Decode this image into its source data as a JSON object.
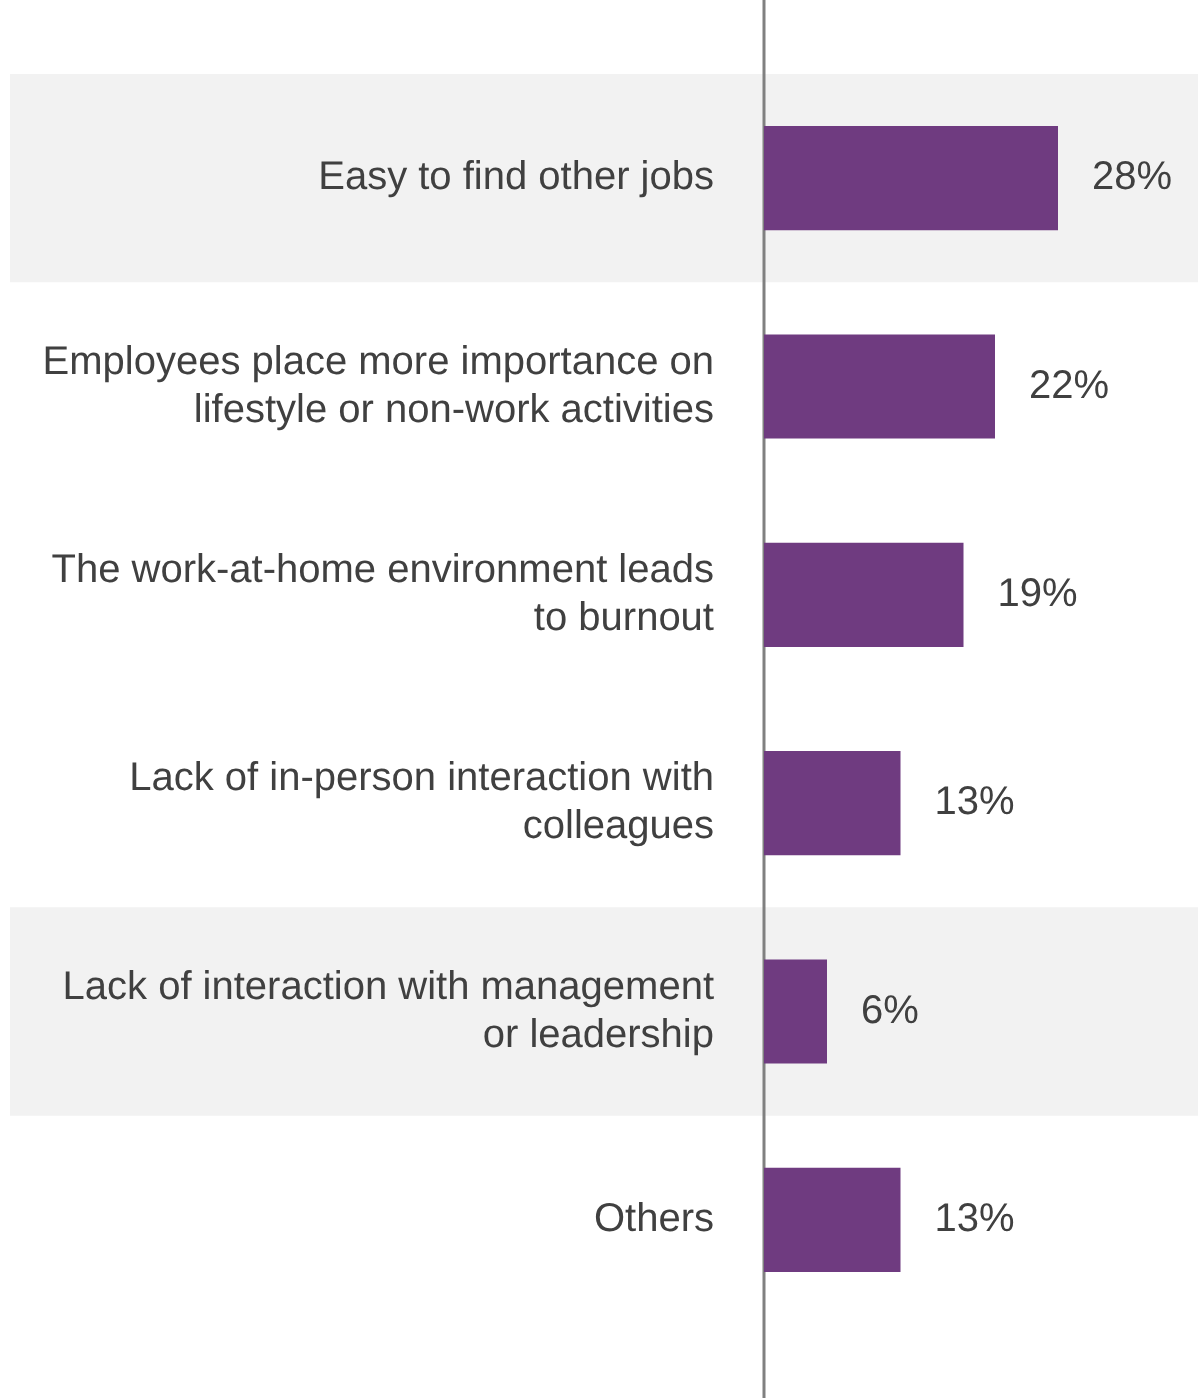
{
  "chart_data": {
    "type": "bar",
    "orientation": "horizontal",
    "categories": [
      "Easy to find other jobs",
      "Employees place more importance on lifestyle or non-work activities",
      "The work-at-home environment leads to burnout",
      "Lack of in-person interaction with colleagues",
      "Lack of interaction with management or leadership",
      "Others"
    ],
    "values": [
      28,
      22,
      19,
      13,
      6,
      13
    ],
    "color": "#6f3b80",
    "data_labels": true,
    "value_labels": [
      "28%",
      "22%",
      "19%",
      "13%",
      "6%",
      "13%"
    ],
    "bands": [
      {
        "axis": "y",
        "from": "Easy to find other jobs",
        "to": "Easy to find other jobs",
        "color": "#f2f2f2"
      },
      {
        "axis": "y",
        "from": "Lack of interaction with management or leadership",
        "to": "Lack of interaction with management or leadership",
        "color": "#f2f2f2"
      }
    ],
    "grid": false,
    "legend": false
  }
}
